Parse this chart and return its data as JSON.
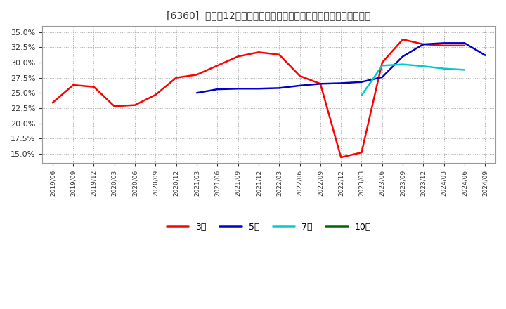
{
  "title": "[6360]  売上高12か月移動合計の対前年同期増減率の標準偏差の推移",
  "ylim": [
    0.135,
    0.36
  ],
  "yticks": [
    0.15,
    0.175,
    0.2,
    0.225,
    0.25,
    0.275,
    0.3,
    0.325,
    0.35
  ],
  "background_color": "#ffffff",
  "grid_color": "#aaaaaa",
  "x_labels": [
    "2019/06",
    "2019/09",
    "2019/12",
    "2020/03",
    "2020/06",
    "2020/09",
    "2020/12",
    "2021/03",
    "2021/06",
    "2021/09",
    "2021/12",
    "2022/03",
    "2022/06",
    "2022/09",
    "2022/12",
    "2023/03",
    "2023/06",
    "2023/09",
    "2023/12",
    "2024/03",
    "2024/06",
    "2024/09"
  ],
  "series": {
    "3年": {
      "color": "#ff0000",
      "data": [
        [
          "2019/06",
          0.234
        ],
        [
          "2019/09",
          0.263
        ],
        [
          "2019/12",
          0.26
        ],
        [
          "2020/03",
          0.228
        ],
        [
          "2020/06",
          0.23
        ],
        [
          "2020/09",
          0.247
        ],
        [
          "2020/12",
          0.275
        ],
        [
          "2021/03",
          0.28
        ],
        [
          "2021/06",
          0.295
        ],
        [
          "2021/09",
          0.31
        ],
        [
          "2021/12",
          0.317
        ],
        [
          "2022/03",
          0.313
        ],
        [
          "2022/06",
          0.278
        ],
        [
          "2022/09",
          0.265
        ],
        [
          "2022/12",
          0.144
        ],
        [
          "2023/03",
          0.152
        ],
        [
          "2023/06",
          0.3
        ],
        [
          "2023/09",
          0.338
        ],
        [
          "2023/12",
          0.33
        ],
        [
          "2024/03",
          0.328
        ],
        [
          "2024/06",
          0.328
        ]
      ]
    },
    "5年": {
      "color": "#0000cc",
      "data": [
        [
          "2021/03",
          0.25
        ],
        [
          "2021/06",
          0.256
        ],
        [
          "2021/09",
          0.257
        ],
        [
          "2021/12",
          0.257
        ],
        [
          "2022/03",
          0.258
        ],
        [
          "2022/06",
          0.262
        ],
        [
          "2022/09",
          0.265
        ],
        [
          "2022/12",
          0.266
        ],
        [
          "2023/03",
          0.268
        ],
        [
          "2023/06",
          0.276
        ],
        [
          "2023/09",
          0.31
        ],
        [
          "2023/12",
          0.33
        ],
        [
          "2024/03",
          0.332
        ],
        [
          "2024/06",
          0.332
        ],
        [
          "2024/09",
          0.312
        ]
      ]
    },
    "7年": {
      "color": "#00cccc",
      "data": [
        [
          "2023/03",
          0.246
        ],
        [
          "2023/06",
          0.295
        ],
        [
          "2023/09",
          0.297
        ],
        [
          "2023/12",
          0.294
        ],
        [
          "2024/03",
          0.29
        ],
        [
          "2024/06",
          0.288
        ]
      ]
    },
    "10年": {
      "color": "#006600",
      "data": []
    }
  },
  "legend_order": [
    "3年",
    "5年",
    "7年",
    "10年"
  ]
}
